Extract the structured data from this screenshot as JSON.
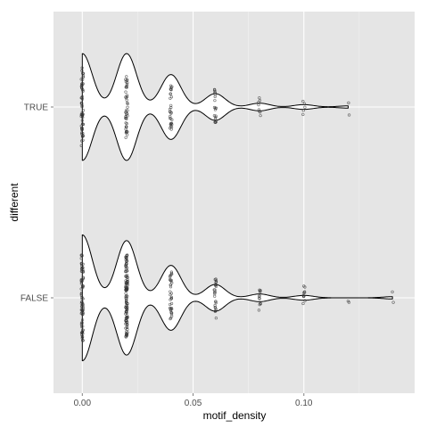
{
  "chart_data": {
    "type": "violin",
    "title": "",
    "xlabel": "motif_density",
    "ylabel": "different",
    "xlim": [
      -0.013,
      0.15
    ],
    "x_ticks": [
      0.0,
      0.05,
      0.1
    ],
    "x_tick_labels": [
      "0.00",
      "0.05",
      "0.10"
    ],
    "categories": [
      "TRUE",
      "FALSE"
    ],
    "grid": true,
    "background": "#e5e5e5",
    "grid_color": "#ffffff",
    "violin_fill": "#ffffff",
    "violin_stroke": "#000000",
    "point_color": "#333333",
    "series": [
      {
        "category": "TRUE",
        "range": [
          0.0,
          0.12
        ],
        "peaks": [
          {
            "x": 0.0,
            "width": 0.56
          },
          {
            "x": 0.02,
            "width": 0.56
          },
          {
            "x": 0.04,
            "width": 0.34
          },
          {
            "x": 0.06,
            "width": 0.14
          },
          {
            "x": 0.08,
            "width": 0.04
          },
          {
            "x": 0.1,
            "width": 0.025
          },
          {
            "x": 0.12,
            "width": 0.012
          }
        ],
        "points": [
          {
            "x": 0.0,
            "count": 60
          },
          {
            "x": 0.02,
            "count": 45
          },
          {
            "x": 0.04,
            "count": 30
          },
          {
            "x": 0.06,
            "count": 20
          },
          {
            "x": 0.08,
            "count": 8
          },
          {
            "x": 0.1,
            "count": 5
          },
          {
            "x": 0.12,
            "count": 2
          }
        ]
      },
      {
        "category": "FALSE",
        "range": [
          0.0,
          0.14
        ],
        "peaks": [
          {
            "x": 0.0,
            "width": 0.66
          },
          {
            "x": 0.02,
            "width": 0.6
          },
          {
            "x": 0.04,
            "width": 0.34
          },
          {
            "x": 0.06,
            "width": 0.14
          },
          {
            "x": 0.08,
            "width": 0.04
          },
          {
            "x": 0.1,
            "width": 0.025
          },
          {
            "x": 0.12,
            "width": 0.0
          },
          {
            "x": 0.14,
            "width": 0.012
          }
        ],
        "points": [
          {
            "x": 0.0,
            "count": 80
          },
          {
            "x": 0.02,
            "count": 120
          },
          {
            "x": 0.04,
            "count": 35
          },
          {
            "x": 0.06,
            "count": 25
          },
          {
            "x": 0.08,
            "count": 12
          },
          {
            "x": 0.1,
            "count": 10
          },
          {
            "x": 0.12,
            "count": 2
          },
          {
            "x": 0.14,
            "count": 2
          }
        ]
      }
    ]
  }
}
